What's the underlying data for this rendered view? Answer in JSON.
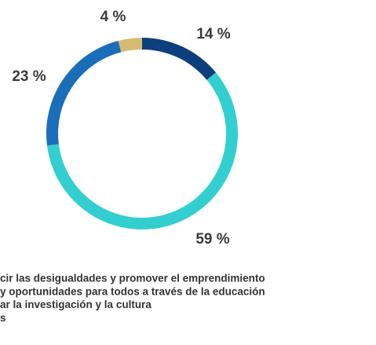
{
  "chart_data": {
    "type": "donut",
    "categories": [
      "cir las desigualdades y promover el emprendimiento",
      "y oportunidades para todos a través de la educación",
      "ar la investigación y la cultura",
      "s"
    ],
    "values": [
      14,
      59,
      23,
      4
    ],
    "value_labels": [
      "14 %",
      "59 %",
      "23 %",
      "4 %"
    ],
    "colors": [
      "#0d3f7c",
      "#33cfd0",
      "#1a6db8",
      "#d6bc72"
    ]
  }
}
